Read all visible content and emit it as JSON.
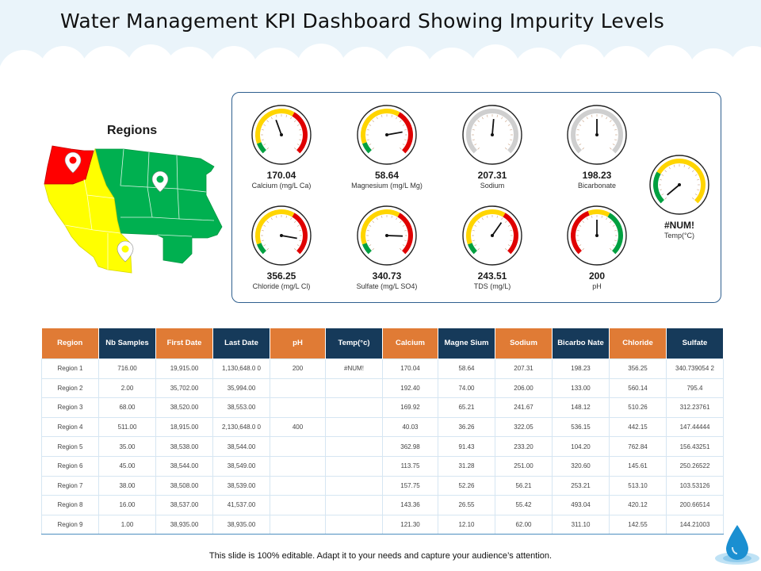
{
  "title": "Water Management KPI Dashboard Showing Impurity Levels",
  "map": {
    "title": "Regions",
    "colors": {
      "red": "#ff0000",
      "yellow": "#ffff00",
      "green": "#00b050"
    }
  },
  "gauges": [
    {
      "value": "170.04",
      "label": "Calcium (mg/L Ca)",
      "scheme": "gyr"
    },
    {
      "value": "58.64",
      "label": "Magnesium (mg/L Mg)",
      "scheme": "gyr"
    },
    {
      "value": "207.31",
      "label": "Sodium",
      "scheme": "grey"
    },
    {
      "value": "198.23",
      "label": "Bicarbonate",
      "scheme": "grey"
    },
    {
      "value": "#NUM!",
      "label": "Temp(°C)",
      "scheme": "gy"
    },
    {
      "value": "356.25",
      "label": "Chloride (mg/L Cl)",
      "scheme": "gyr"
    },
    {
      "value": "340.73",
      "label": "Sulfate (mg/L SO4)",
      "scheme": "gyr"
    },
    {
      "value": "243.51",
      "label": "TDS (mg/L)",
      "scheme": "gyr"
    },
    {
      "value": "200",
      "label": "pH",
      "scheme": "ryg"
    }
  ],
  "table": {
    "headers": [
      "Region",
      "Nb Samples",
      "First Date",
      "Last Date",
      "pH",
      "Temp(°c)",
      "Calcium",
      "Magne Sium",
      "Sodium",
      "Bicarbo Nate",
      "Chloride",
      "Sulfate"
    ],
    "rows": [
      [
        "Region 1",
        "716.00",
        "19,915.00",
        "1,130,648.0 0",
        "200",
        "#NUM!",
        "170.04",
        "58.64",
        "207.31",
        "198.23",
        "356.25",
        "340.739054 2"
      ],
      [
        "Region 2",
        "2.00",
        "35,702.00",
        "35,994.00",
        "",
        "",
        "192.40",
        "74.00",
        "206.00",
        "133.00",
        "560.14",
        "795.4"
      ],
      [
        "Region 3",
        "68.00",
        "38,520.00",
        "38,553.00",
        "",
        "",
        "169.92",
        "65.21",
        "241.67",
        "148.12",
        "510.26",
        "312.23761"
      ],
      [
        "Region 4",
        "511.00",
        "18,915.00",
        "2,130,648.0 0",
        "400",
        "",
        "40.03",
        "36.26",
        "322.05",
        "536.15",
        "442.15",
        "147.44444"
      ],
      [
        "Region 5",
        "35.00",
        "38,538.00",
        "38,544.00",
        "",
        "",
        "362.98",
        "91.43",
        "233.20",
        "104.20",
        "762.84",
        "156.43251"
      ],
      [
        "Region 6",
        "45.00",
        "38,544.00",
        "38,549.00",
        "",
        "",
        "113.75",
        "31.28",
        "251.00",
        "320.60",
        "145.61",
        "250.26522"
      ],
      [
        "Region 7",
        "38.00",
        "38,508.00",
        "38,539.00",
        "",
        "",
        "157.75",
        "52.26",
        "56.21",
        "253.21",
        "513.10",
        "103.53126"
      ],
      [
        "Region 8",
        "16.00",
        "38,537.00",
        "41,537.00",
        "",
        "",
        "143.36",
        "26.55",
        "55.42",
        "493.04",
        "420.12",
        "200.66514"
      ],
      [
        "Region 9",
        "1.00",
        "38,935.00",
        "38,935.00",
        "",
        "",
        "121.30",
        "12.10",
        "62.00",
        "311.10",
        "142.55",
        "144.21003"
      ]
    ]
  },
  "footer": "This slide is 100% editable. Adapt it to your needs and capture your audience’s attention."
}
